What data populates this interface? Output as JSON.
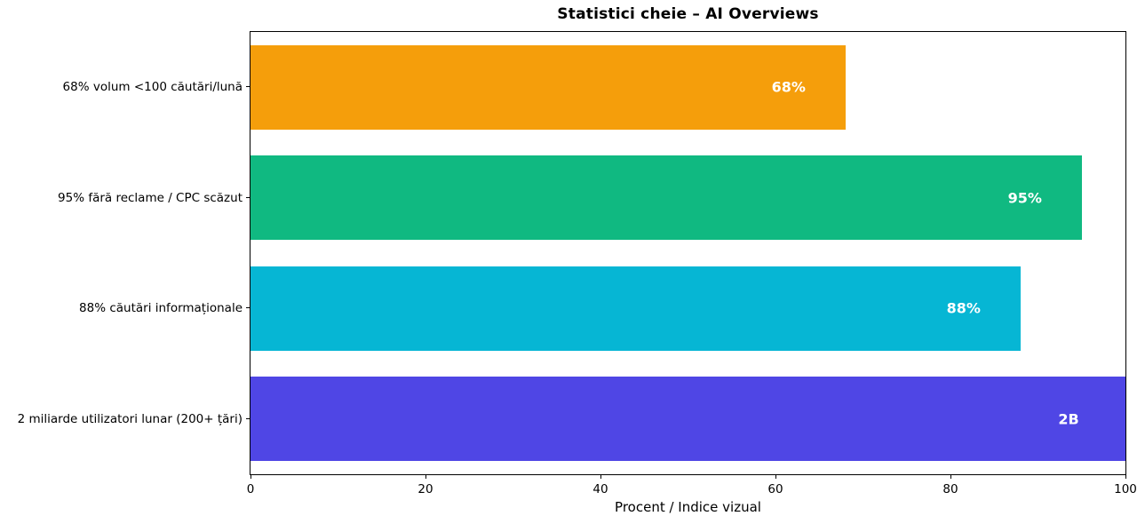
{
  "figure": {
    "background": "#ffffff",
    "text_color": "#000000",
    "bar_label_color": "#ffffff"
  },
  "chart_data": {
    "type": "bar",
    "orientation": "horizontal",
    "title": "Statistici cheie – AI Overviews",
    "xlabel": "Procent / Indice vizual",
    "ylabel": "",
    "xlim": [
      0,
      100
    ],
    "x_ticks": [
      0,
      20,
      40,
      60,
      80,
      100
    ],
    "grid": false,
    "legend": false,
    "categories": [
      "68% volum <100 căutări/lună",
      "95% fără reclame / CPC scăzut",
      "88% căutări informaționale",
      "2 miliarde utilizatori lunar (200+ țări)"
    ],
    "values": [
      68,
      95,
      88,
      100
    ],
    "bars": [
      {
        "category": "68% volum <100 căutări/lună",
        "value": 68,
        "label": "68%",
        "color": "#F59E0B"
      },
      {
        "category": "95% fără reclame / CPC scăzut",
        "value": 95,
        "label": "95%",
        "color": "#10B981"
      },
      {
        "category": "88% căutări informaționale",
        "value": 88,
        "label": "88%",
        "color": "#06B6D4"
      },
      {
        "category": "2 miliarde utilizatori lunar (200+ țări)",
        "value": 100,
        "label": "2B",
        "color": "#4F46E5"
      }
    ]
  }
}
